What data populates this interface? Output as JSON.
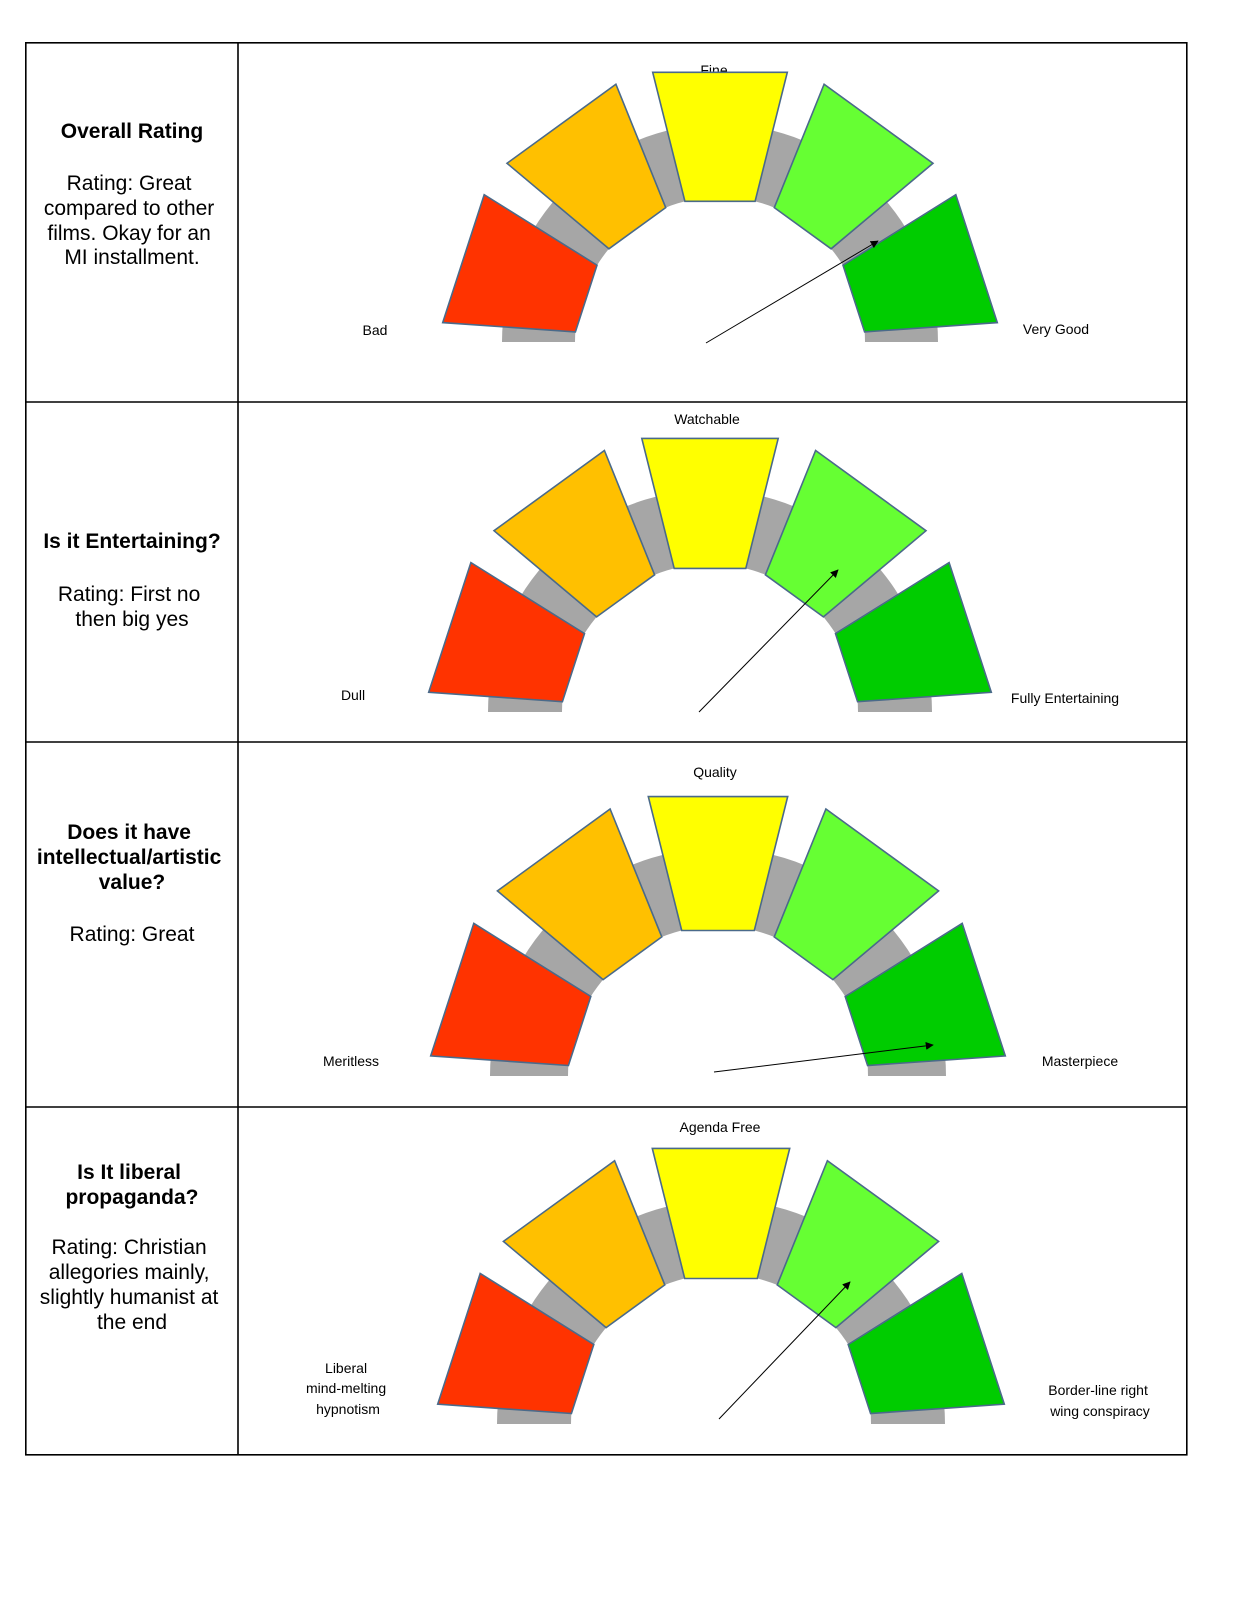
{
  "colors": {
    "segments": [
      "#ff3300",
      "#ffc000",
      "#ffff00",
      "#66ff33",
      "#00cc00"
    ],
    "band": "#a6a6a6",
    "border": "#000000"
  },
  "rows": [
    {
      "title": [
        "Overall Rating"
      ],
      "rating": [
        "Rating: Great",
        "compared to other",
        "films. Okay for an",
        "MI installment."
      ],
      "gauge": {
        "left_label": [
          "Bad"
        ],
        "top_label": "Fine",
        "right_label": [
          "Very Good"
        ],
        "needle_points_to": "Very Good"
      }
    },
    {
      "title": [
        "Is it Entertaining?"
      ],
      "rating": [
        "Rating: First no",
        "then big yes"
      ],
      "gauge": {
        "left_label": [
          "Dull"
        ],
        "top_label": "Watchable",
        "right_label": [
          "Fully Entertaining"
        ],
        "needle_points_to": "segment 4 of 5"
      }
    },
    {
      "title": [
        "Does it have",
        "intellectual/artistic",
        "value?"
      ],
      "rating": [
        "Rating: Great"
      ],
      "gauge": {
        "left_label": [
          "Meritless"
        ],
        "top_label": "Quality",
        "right_label": [
          "Masterpiece"
        ],
        "needle_points_to": "Masterpiece"
      }
    },
    {
      "title": [
        "Is It liberal",
        "propaganda?"
      ],
      "rating": [
        "Rating: Christian",
        "allegories mainly,",
        "slightly humanist at",
        "the end"
      ],
      "gauge": {
        "left_label": [
          "Liberal",
          "mind-melting",
          "hypnotism"
        ],
        "top_label": "Agenda Free",
        "right_label": [
          "Border-line right",
          "wing conspiracy"
        ],
        "needle_points_to": "segment 4 of 5"
      }
    }
  ]
}
